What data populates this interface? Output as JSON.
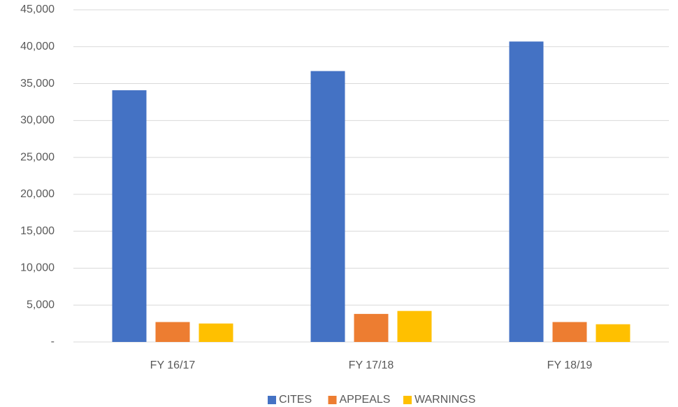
{
  "chart_data": {
    "type": "bar",
    "categories": [
      "FY 16/17",
      "FY 17/18",
      "FY 18/19"
    ],
    "series": [
      {
        "name": "CITES",
        "color": "#4472c4",
        "values": [
          34100,
          36700,
          40700
        ]
      },
      {
        "name": "APPEALS",
        "color": "#ed7d31",
        "values": [
          2700,
          3800,
          2700
        ]
      },
      {
        "name": "WARNINGS",
        "color": "#ffc000",
        "values": [
          2500,
          4200,
          2400
        ]
      }
    ],
    "ylim": [
      0,
      45000
    ],
    "yticks": [
      {
        "value": 0,
        "label": "-"
      },
      {
        "value": 5000,
        "label": "5,000"
      },
      {
        "value": 10000,
        "label": "10,000"
      },
      {
        "value": 15000,
        "label": "15,000"
      },
      {
        "value": 20000,
        "label": "20,000"
      },
      {
        "value": 25000,
        "label": "25,000"
      },
      {
        "value": 30000,
        "label": "30,000"
      },
      {
        "value": 35000,
        "label": "35,000"
      },
      {
        "value": 40000,
        "label": "40,000"
      },
      {
        "value": 45000,
        "label": "45,000"
      }
    ],
    "grid": true,
    "legend": "bottom"
  }
}
